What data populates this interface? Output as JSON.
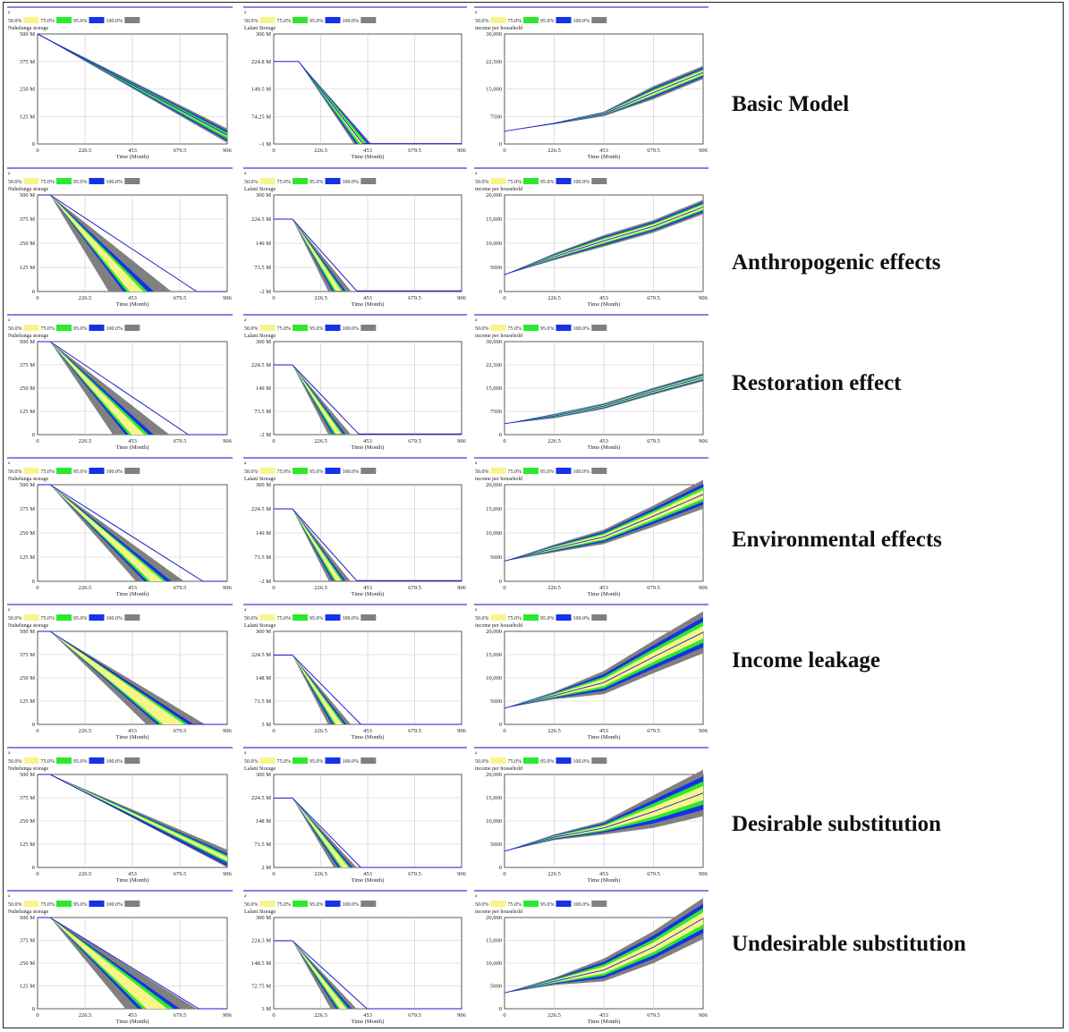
{
  "legend": {
    "items": [
      {
        "label": "50.0%",
        "color": "#f7f58a"
      },
      {
        "label": "75.0%",
        "color": "#2ee82e"
      },
      {
        "label": "95.0%",
        "color": "#1432e6"
      },
      {
        "label": "100.0%",
        "color": "#808080"
      }
    ],
    "marker": "a"
  },
  "scenarios": [
    {
      "label": "Basic Model"
    },
    {
      "label": "Anthropogenic effects"
    },
    {
      "label": "Restoration effect"
    },
    {
      "label": "Environmental effects"
    },
    {
      "label": "Income leakage"
    },
    {
      "label": "Desirable substitution"
    },
    {
      "label": "Undesirable substitution"
    }
  ],
  "chart_data": [
    {
      "type": "area",
      "scenario": "Basic Model",
      "variable": "Nuhelunga storage",
      "xlabel": "Time (Month)",
      "xticks": [
        "0",
        "226.5",
        "453",
        "679.5",
        "906"
      ],
      "yticks": [
        "0",
        "125 M",
        "250 M",
        "375 M",
        "500 M"
      ],
      "xlim": [
        0,
        906
      ],
      "ylim": [
        0,
        500000000
      ],
      "start": 500000000,
      "t0": 0,
      "end_at_906": {
        "p50": [
          33000000,
          42000000
        ],
        "p75": [
          22000000,
          52000000
        ],
        "p95": [
          14000000,
          60000000
        ],
        "p100": [
          5000000,
          70000000
        ]
      },
      "deterministic_end": 40000000
    },
    {
      "type": "area",
      "scenario": "Basic Model",
      "variable": "Lalani Storage",
      "xlabel": "Time (Month)",
      "xticks": [
        "0",
        "226.5",
        "453",
        "679.5",
        "906"
      ],
      "yticks": [
        "-1 M",
        "74.25 M",
        "149.5 M",
        "224.8 M",
        "300 M"
      ],
      "xlim": [
        0,
        906
      ],
      "ylim": [
        -1000000,
        300000000
      ],
      "start": 224800000,
      "t0": 120,
      "zero_month": {
        "p50": [
          418,
          438
        ],
        "p75": [
          405,
          452
        ],
        "p95": [
          396,
          462
        ],
        "p100": [
          386,
          470
        ]
      },
      "deterministic_zero": 430
    },
    {
      "type": "line",
      "scenario": "Basic Model",
      "variable": "income per household",
      "xlabel": "Time (Month)",
      "xticks": [
        "0",
        "226.5",
        "453",
        "679.5",
        "906"
      ],
      "yticks": [
        "0",
        "7500",
        "15,000",
        "22,500",
        "30,000"
      ],
      "xlim": [
        0,
        906
      ],
      "ylim": [
        0,
        30000
      ],
      "deterministic": [
        [
          0,
          3500
        ],
        [
          226.5,
          5600
        ],
        [
          453,
          8200
        ],
        [
          679.5,
          14000
        ],
        [
          906,
          19500
        ]
      ],
      "spread": [
        0,
        200,
        600,
        1800,
        1800
      ]
    },
    {
      "type": "area",
      "scenario": "Anthropogenic effects",
      "variable": "Nuhelunga storage",
      "xlabel": "Time (Month)",
      "xticks": [
        "0",
        "226.5",
        "453",
        "679.5",
        "906"
      ],
      "yticks": [
        "0",
        "125 M",
        "250 M",
        "375 M",
        "500 M"
      ],
      "xlim": [
        0,
        906
      ],
      "ylim": [
        0,
        500000000
      ],
      "start": 500000000,
      "t0": 60,
      "zero_month": {
        "p50": [
          440,
          505
        ],
        "p75": [
          425,
          525
        ],
        "p95": [
          410,
          555
        ],
        "p100": [
          340,
          640
        ]
      },
      "deterministic_zero": 760
    },
    {
      "type": "area",
      "scenario": "Anthropogenic effects",
      "variable": "Lalani Storage",
      "xlabel": "Time (Month)",
      "xticks": [
        "0",
        "226.5",
        "453",
        "679.5",
        "906"
      ],
      "yticks": [
        "-2 M",
        "73.5 M",
        "149 M",
        "224.5 M",
        "300 M"
      ],
      "xlim": [
        0,
        906
      ],
      "ylim": [
        -2000000,
        300000000
      ],
      "start": 224500000,
      "t0": 90,
      "zero_month": {
        "p50": [
          300,
          325
        ],
        "p75": [
          290,
          335
        ],
        "p95": [
          282,
          345
        ],
        "p100": [
          262,
          372
        ]
      },
      "deterministic_zero": 400
    },
    {
      "type": "line",
      "scenario": "Anthropogenic effects",
      "variable": "income per household",
      "xlabel": "Time (Month)",
      "xticks": [
        "0",
        "226.5",
        "453",
        "679.5",
        "906"
      ],
      "yticks": [
        "0",
        "5000",
        "10,000",
        "15,000",
        "20,000"
      ],
      "xlim": [
        0,
        906
      ],
      "ylim": [
        0,
        20000
      ],
      "deterministic": [
        [
          0,
          3500
        ],
        [
          226.5,
          7200
        ],
        [
          453,
          10500
        ],
        [
          679.5,
          13500
        ],
        [
          906,
          17500
        ]
      ],
      "spread": [
        0,
        700,
        1200,
        1300,
        1500
      ]
    },
    {
      "type": "area",
      "scenario": "Restoration effect",
      "variable": "Nuhelunga storage",
      "xlabel": "Time (Month)",
      "xticks": [
        "0",
        "226.5",
        "453",
        "679.5",
        "906"
      ],
      "yticks": [
        "0",
        "125 M",
        "250 M",
        "375 M",
        "500 M"
      ],
      "xlim": [
        0,
        906
      ],
      "ylim": [
        0,
        500000000
      ],
      "start": 500000000,
      "t0": 60,
      "zero_month": {
        "p50": [
          450,
          510
        ],
        "p75": [
          435,
          530
        ],
        "p95": [
          420,
          555
        ],
        "p100": [
          360,
          630
        ]
      },
      "deterministic_zero": 720
    },
    {
      "type": "area",
      "scenario": "Restoration effect",
      "variable": "Lalani Storage",
      "xlabel": "Time (Month)",
      "xticks": [
        "0",
        "226.5",
        "453",
        "679.5",
        "906"
      ],
      "yticks": [
        "-2 M",
        "73.5 M",
        "149 M",
        "224.5 M",
        "300 M"
      ],
      "xlim": [
        0,
        906
      ],
      "ylim": [
        -2000000,
        300000000
      ],
      "start": 224500000,
      "t0": 90,
      "zero_month": {
        "p50": [
          300,
          325
        ],
        "p75": [
          290,
          335
        ],
        "p95": [
          282,
          345
        ],
        "p100": [
          262,
          370
        ]
      },
      "deterministic_zero": 410
    },
    {
      "type": "line",
      "scenario": "Restoration effect",
      "variable": "income per household",
      "xlabel": "Time (Month)",
      "xticks": [
        "0",
        "226.5",
        "453",
        "679.5",
        "906"
      ],
      "yticks": [
        "0",
        "7500",
        "15,000",
        "22,500",
        "30,000"
      ],
      "xlim": [
        0,
        906
      ],
      "ylim": [
        0,
        30000
      ],
      "deterministic": [
        [
          0,
          3500
        ],
        [
          226.5,
          6000
        ],
        [
          453,
          9200
        ],
        [
          679.5,
          14000
        ],
        [
          906,
          18500
        ]
      ],
      "spread": [
        0,
        700,
        900,
        1100,
        1300
      ]
    },
    {
      "type": "area",
      "scenario": "Environmental effects",
      "variable": "Nuhelunga storage",
      "xlabel": "Time (Month)",
      "xticks": [
        "0",
        "226.5",
        "453",
        "679.5",
        "906"
      ],
      "yticks": [
        "0",
        "125 M",
        "250 M",
        "375 M",
        "500 M"
      ],
      "xlim": [
        0,
        906
      ],
      "ylim": [
        0,
        500000000
      ],
      "start": 500000000,
      "t0": 60,
      "zero_month": {
        "p50": [
          540,
          600
        ],
        "p75": [
          525,
          615
        ],
        "p95": [
          510,
          640
        ],
        "p100": [
          470,
          700
        ]
      },
      "deterministic_zero": 790
    },
    {
      "type": "area",
      "scenario": "Environmental effects",
      "variable": "Lalani Storage",
      "xlabel": "Time (Month)",
      "xticks": [
        "0",
        "226.5",
        "453",
        "679.5",
        "906"
      ],
      "yticks": [
        "-2 M",
        "73.5 M",
        "149 M",
        "224.5 M",
        "300 M"
      ],
      "xlim": [
        0,
        906
      ],
      "ylim": [
        -2000000,
        300000000
      ],
      "start": 224500000,
      "t0": 90,
      "zero_month": {
        "p50": [
          300,
          325
        ],
        "p75": [
          290,
          335
        ],
        "p95": [
          282,
          345
        ],
        "p100": [
          265,
          368
        ]
      },
      "deterministic_zero": 400
    },
    {
      "type": "line",
      "scenario": "Environmental effects",
      "variable": "income per household",
      "xlabel": "Time (Month)",
      "xticks": [
        "0",
        "226.5",
        "453",
        "679.5",
        "906"
      ],
      "yticks": [
        "0",
        "5000",
        "10,000",
        "15,000",
        "20,000"
      ],
      "xlim": [
        0,
        906
      ],
      "ylim": [
        0,
        20000
      ],
      "deterministic": [
        [
          0,
          4200
        ],
        [
          226.5,
          6800
        ],
        [
          453,
          9200
        ],
        [
          679.5,
          13500
        ],
        [
          906,
          18000
        ]
      ],
      "spread": [
        0,
        800,
        1500,
        2200,
        3000
      ]
    },
    {
      "type": "area",
      "scenario": "Income leakage",
      "variable": "Nuhelunga storage",
      "xlabel": "Time (Month)",
      "xticks": [
        "0",
        "226.5",
        "453",
        "679.5",
        "906"
      ],
      "yticks": [
        "0",
        "125 M",
        "250 M",
        "375 M",
        "500 M"
      ],
      "xlim": [
        0,
        906
      ],
      "ylim": [
        0,
        500000000
      ],
      "start": 500000000,
      "t0": 60,
      "zero_month": {
        "p50": [
          600,
          700
        ],
        "p75": [
          585,
          720
        ],
        "p95": [
          570,
          745
        ],
        "p100": [
          520,
          800
        ]
      },
      "deterministic_zero": 740
    },
    {
      "type": "area",
      "scenario": "Income leakage",
      "variable": "Lalani Storage",
      "xlabel": "Time (Month)",
      "xticks": [
        "0",
        "226.5",
        "453",
        "679.5",
        "906"
      ],
      "yticks": [
        "3 M",
        "71.5 M",
        "148 M",
        "224.5 M",
        "300 M"
      ],
      "xlim": [
        0,
        906
      ],
      "ylim": [
        3000000,
        300000000
      ],
      "start": 224500000,
      "t0": 90,
      "zero_month": {
        "p50": [
          300,
          330
        ],
        "p75": [
          290,
          340
        ],
        "p95": [
          280,
          350
        ],
        "p100": [
          262,
          372
        ]
      },
      "deterministic_zero": 420
    },
    {
      "type": "line",
      "scenario": "Income leakage",
      "variable": "income per household",
      "xlabel": "Time (Month)",
      "xticks": [
        "0",
        "226.5",
        "453",
        "679.5",
        "906"
      ],
      "yticks": [
        "0",
        "5000",
        "10,000",
        "15,000",
        "20,000"
      ],
      "xlim": [
        0,
        906
      ],
      "ylim": [
        0,
        20000
      ],
      "deterministic": [
        [
          0,
          3500
        ],
        [
          226.5,
          6200
        ],
        [
          453,
          9000
        ],
        [
          679.5,
          14500
        ],
        [
          906,
          19800
        ]
      ],
      "spread": [
        0,
        800,
        2500,
        3500,
        4500
      ]
    },
    {
      "type": "area",
      "scenario": "Desirable substitution",
      "variable": "Nuhelunga storage",
      "xlabel": "Time (Month)",
      "xticks": [
        "0",
        "226.5",
        "453",
        "679.5",
        "906"
      ],
      "yticks": [
        "0",
        "125 M",
        "250 M",
        "375 M",
        "500 M"
      ],
      "xlim": [
        0,
        906
      ],
      "ylim": [
        0,
        500000000
      ],
      "start": 500000000,
      "t0": 60,
      "end_at_906": {
        "p50": [
          35000000,
          55000000
        ],
        "p75": [
          25000000,
          65000000
        ],
        "p95": [
          15000000,
          75000000
        ],
        "p100": [
          0,
          95000000
        ]
      },
      "deterministic_end": 10000000
    },
    {
      "type": "area",
      "scenario": "Desirable substitution",
      "variable": "Lalani Storage",
      "xlabel": "Time (Month)",
      "xticks": [
        "0",
        "226.5",
        "453",
        "679.5",
        "906"
      ],
      "yticks": [
        "2 M",
        "71.5 M",
        "148 M",
        "224.5 M",
        "300 M"
      ],
      "xlim": [
        0,
        906
      ],
      "ylim": [
        2000000,
        300000000
      ],
      "start": 224500000,
      "t0": 90,
      "zero_month": {
        "p50": [
          330,
          360
        ],
        "p75": [
          320,
          370
        ],
        "p95": [
          310,
          380
        ],
        "p100": [
          290,
          400
        ]
      },
      "deterministic_zero": 420
    },
    {
      "type": "line",
      "scenario": "Desirable substitution",
      "variable": "income per household",
      "xlabel": "Time (Month)",
      "xticks": [
        "0",
        "226.5",
        "453",
        "679.5",
        "906"
      ],
      "yticks": [
        "0",
        "5000",
        "10,000",
        "15,000",
        "20,000"
      ],
      "xlim": [
        0,
        906
      ],
      "ylim": [
        0,
        20000
      ],
      "deterministic": [
        [
          0,
          3500
        ],
        [
          226.5,
          6500
        ],
        [
          453,
          8500
        ],
        [
          679.5,
          12000
        ],
        [
          906,
          16000
        ]
      ],
      "spread": [
        0,
        600,
        1400,
        3500,
        5000
      ]
    },
    {
      "type": "area",
      "scenario": "Undesirable substitution",
      "variable": "Nuhelunga storage",
      "xlabel": "Time (Month)",
      "xticks": [
        "0",
        "226.5",
        "453",
        "679.5",
        "906"
      ],
      "yticks": [
        "0",
        "125 M",
        "250 M",
        "375 M",
        "500 M"
      ],
      "xlim": [
        0,
        906
      ],
      "ylim": [
        0,
        500000000
      ],
      "start": 500000000,
      "t0": 60,
      "zero_month": {
        "p50": [
          520,
          620
        ],
        "p75": [
          500,
          650
        ],
        "p95": [
          480,
          680
        ],
        "p100": [
          420,
          760
        ]
      },
      "deterministic_zero": 770
    },
    {
      "type": "area",
      "scenario": "Undesirable substitution",
      "variable": "Lalani Storage",
      "xlabel": "Time (Month)",
      "xticks": [
        "0",
        "226.5",
        "453",
        "679.5",
        "906"
      ],
      "yticks": [
        "3 M",
        "72.75 M",
        "148.5 M",
        "224.3 M",
        "300 M"
      ],
      "xlim": [
        0,
        906
      ],
      "ylim": [
        3000000,
        300000000
      ],
      "start": 224300000,
      "t0": 90,
      "zero_month": {
        "p50": [
          320,
          350
        ],
        "p75": [
          310,
          362
        ],
        "p95": [
          300,
          375
        ],
        "p100": [
          275,
          400
        ]
      },
      "deterministic_zero": 450
    },
    {
      "type": "line",
      "scenario": "Undesirable substitution",
      "variable": "income per household",
      "xlabel": "Time (Month)",
      "xticks": [
        "0",
        "226.5",
        "453",
        "679.5",
        "906"
      ],
      "yticks": [
        "0",
        "5000",
        "10,000",
        "15,000",
        "20,000"
      ],
      "xlim": [
        0,
        906
      ],
      "ylim": [
        0,
        20000
      ],
      "deterministic": [
        [
          0,
          3500
        ],
        [
          226.5,
          6000
        ],
        [
          453,
          8500
        ],
        [
          679.5,
          13500
        ],
        [
          906,
          19800
        ]
      ],
      "spread": [
        0,
        800,
        2500,
        3500,
        4500
      ]
    }
  ]
}
